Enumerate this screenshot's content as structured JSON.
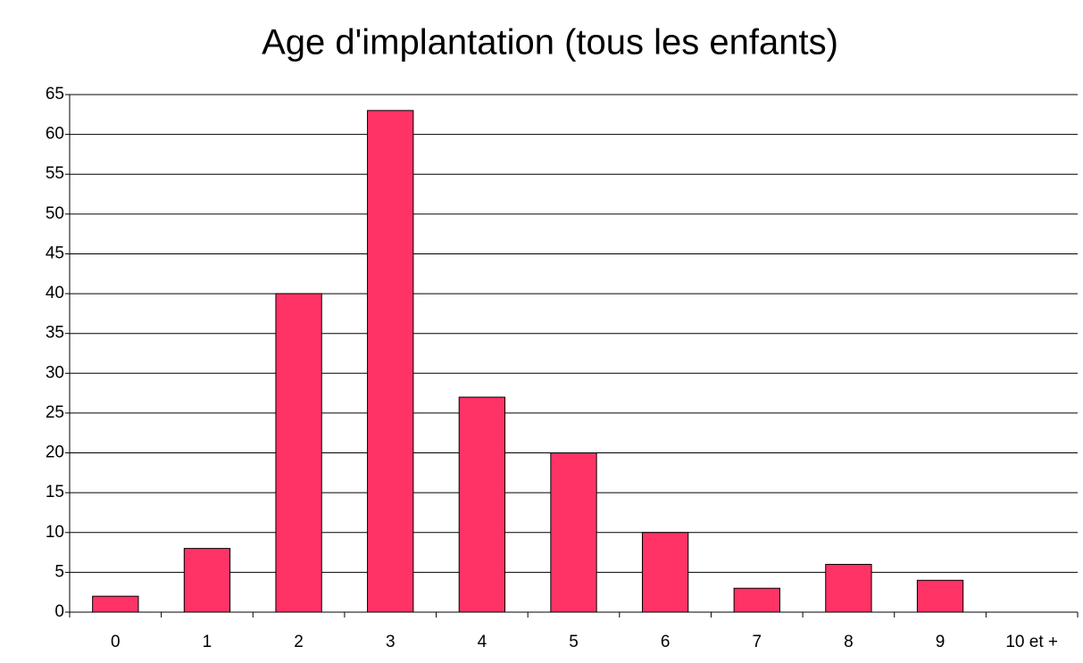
{
  "chart_data": {
    "type": "bar",
    "title": "Age d'implantation (tous les enfants)",
    "categories": [
      "0",
      "1",
      "2",
      "3",
      "4",
      "5",
      "6",
      "7",
      "8",
      "9",
      "10 et +"
    ],
    "values": [
      2,
      8,
      40,
      63,
      27,
      20,
      10,
      3,
      6,
      4,
      0
    ],
    "color": "#ff3366",
    "ylim": [
      0,
      65
    ],
    "yticks": [
      0,
      5,
      10,
      15,
      20,
      25,
      30,
      35,
      40,
      45,
      50,
      55,
      60,
      65
    ],
    "grid": true
  }
}
